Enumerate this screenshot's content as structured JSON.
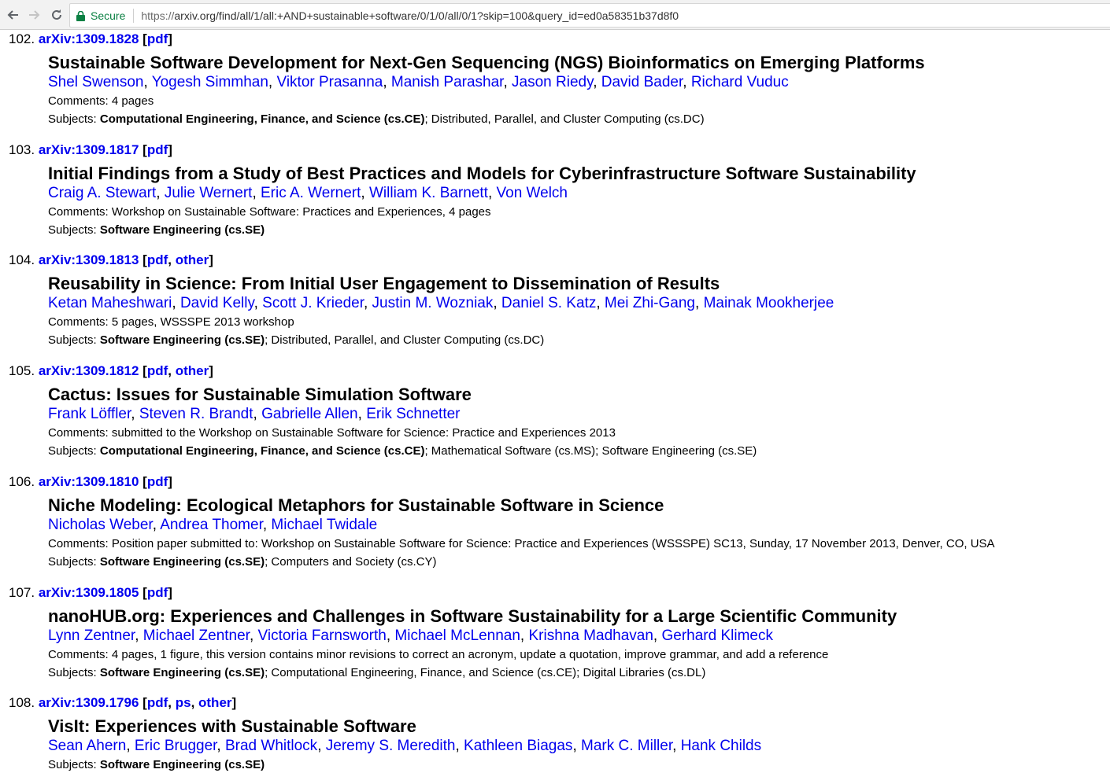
{
  "browser": {
    "secure_label": "Secure",
    "url_prefix": "https://",
    "url_rest": "arxiv.org/find/all/1/all:+AND+sustainable+software/0/1/0/all/0/1?skip=100&query_id=ed0a58351b37d8f0"
  },
  "entries": [
    {
      "num": "102.",
      "arxiv_id": "arXiv:1309.1828",
      "links": [
        "pdf"
      ],
      "title": "Sustainable Software Development for Next-Gen Sequencing (NGS) Bioinformatics on Emerging Platforms",
      "authors": [
        "Shel Swenson",
        "Yogesh Simmhan",
        "Viktor Prasanna",
        "Manish Parashar",
        "Jason Riedy",
        "David Bader",
        "Richard Vuduc"
      ],
      "comments": "4 pages",
      "subjects_primary": "Computational Engineering, Finance, and Science (cs.CE)",
      "subjects_rest": "; Distributed, Parallel, and Cluster Computing (cs.DC)"
    },
    {
      "num": "103.",
      "arxiv_id": "arXiv:1309.1817",
      "links": [
        "pdf"
      ],
      "title": "Initial Findings from a Study of Best Practices and Models for Cyberinfrastructure Software Sustainability",
      "authors": [
        "Craig A. Stewart",
        "Julie Wernert",
        "Eric A. Wernert",
        "William K. Barnett",
        "Von Welch"
      ],
      "comments": "Workshop on Sustainable Software: Practices and Experiences, 4 pages",
      "subjects_primary": "Software Engineering (cs.SE)",
      "subjects_rest": ""
    },
    {
      "num": "104.",
      "arxiv_id": "arXiv:1309.1813",
      "links": [
        "pdf",
        "other"
      ],
      "title": "Reusability in Science: From Initial User Engagement to Dissemination of Results",
      "authors": [
        "Ketan Maheshwari",
        "David Kelly",
        "Scott J. Krieder",
        "Justin M. Wozniak",
        "Daniel S. Katz",
        "Mei Zhi-Gang",
        "Mainak Mookherjee"
      ],
      "comments": "5 pages, WSSSPE 2013 workshop",
      "subjects_primary": "Software Engineering (cs.SE)",
      "subjects_rest": "; Distributed, Parallel, and Cluster Computing (cs.DC)"
    },
    {
      "num": "105.",
      "arxiv_id": "arXiv:1309.1812",
      "links": [
        "pdf",
        "other"
      ],
      "title": "Cactus: Issues for Sustainable Simulation Software",
      "authors": [
        "Frank Löffler",
        "Steven R. Brandt",
        "Gabrielle Allen",
        "Erik Schnetter"
      ],
      "comments": "submitted to the Workshop on Sustainable Software for Science: Practice and Experiences 2013",
      "subjects_primary": "Computational Engineering, Finance, and Science (cs.CE)",
      "subjects_rest": "; Mathematical Software (cs.MS); Software Engineering (cs.SE)"
    },
    {
      "num": "106.",
      "arxiv_id": "arXiv:1309.1810",
      "links": [
        "pdf"
      ],
      "title": "Niche Modeling: Ecological Metaphors for Sustainable Software in Science",
      "authors": [
        "Nicholas Weber",
        "Andrea Thomer",
        "Michael Twidale"
      ],
      "comments": "Position paper submitted to: Workshop on Sustainable Software for Science: Practice and Experiences (WSSSPE) SC13, Sunday, 17 November 2013, Denver, CO, USA",
      "subjects_primary": "Software Engineering (cs.SE)",
      "subjects_rest": "; Computers and Society (cs.CY)"
    },
    {
      "num": "107.",
      "arxiv_id": "arXiv:1309.1805",
      "links": [
        "pdf"
      ],
      "title": "nanoHUB.org: Experiences and Challenges in Software Sustainability for a Large Scientific Community",
      "authors": [
        "Lynn Zentner",
        "Michael Zentner",
        "Victoria Farnsworth",
        "Michael McLennan",
        "Krishna Madhavan",
        "Gerhard Klimeck"
      ],
      "comments": "4 pages, 1 figure, this version contains minor revisions to correct an acronym, update a quotation, improve grammar, and add a reference",
      "subjects_primary": "Software Engineering (cs.SE)",
      "subjects_rest": "; Computational Engineering, Finance, and Science (cs.CE); Digital Libraries (cs.DL)"
    },
    {
      "num": "108.",
      "arxiv_id": "arXiv:1309.1796",
      "links": [
        "pdf",
        "ps",
        "other"
      ],
      "title": "VisIt: Experiences with Sustainable Software",
      "authors": [
        "Sean Ahern",
        "Eric Brugger",
        "Brad Whitlock",
        "Jeremy S. Meredith",
        "Kathleen Biagas",
        "Mark C. Miller",
        "Hank Childs"
      ],
      "comments": "",
      "subjects_primary": "Software Engineering (cs.SE)",
      "subjects_rest": ""
    }
  ],
  "labels": {
    "comments": "Comments: ",
    "subjects": "Subjects: "
  }
}
